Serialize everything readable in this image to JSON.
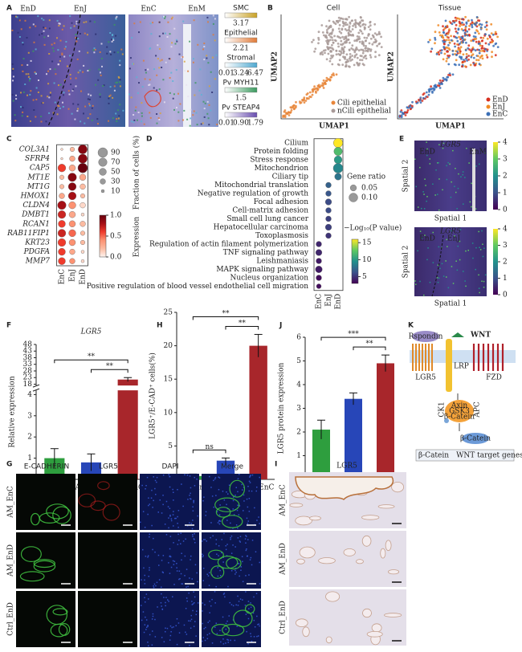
{
  "chart_data": [
    {
      "type": "dot",
      "panel": "C",
      "italic": true,
      "colormap": "Reds",
      "categories": [
        "COL3A1",
        "SFRP4",
        "CAP5",
        "MT1E",
        "MT1G",
        "HMOX1",
        "CLDN4",
        "DMBT1",
        "RCAN1",
        "RAB11FIP1",
        "KRT23",
        "PDGFA",
        "MMP7"
      ],
      "columns": [
        "EnC",
        "EnJ",
        "EnD"
      ],
      "size_values": [
        [
          5,
          20,
          80
        ],
        [
          5,
          30,
          80
        ],
        [
          60,
          40,
          90
        ],
        [
          20,
          70,
          40
        ],
        [
          20,
          60,
          30
        ],
        [
          30,
          60,
          20
        ],
        [
          70,
          50,
          30
        ],
        [
          60,
          40,
          10
        ],
        [
          50,
          40,
          30
        ],
        [
          60,
          50,
          20
        ],
        [
          60,
          40,
          20
        ],
        [
          50,
          30,
          10
        ],
        [
          50,
          30,
          10
        ]
      ],
      "color_values": [
        [
          0.1,
          0.2,
          0.9
        ],
        [
          0.1,
          0.3,
          0.9
        ],
        [
          0.6,
          0.3,
          1.0
        ],
        [
          0.2,
          0.9,
          0.3
        ],
        [
          0.2,
          0.9,
          0.2
        ],
        [
          0.3,
          0.8,
          0.2
        ],
        [
          0.8,
          0.4,
          0.1
        ],
        [
          0.7,
          0.3,
          0.1
        ],
        [
          0.6,
          0.4,
          0.2
        ],
        [
          0.7,
          0.5,
          0.2
        ],
        [
          0.6,
          0.4,
          0.2
        ],
        [
          0.6,
          0.3,
          0.1
        ],
        [
          0.6,
          0.4,
          0.1
        ]
      ],
      "size_legend": {
        "title": "Fraction of cells (%)",
        "ticks": [
          90,
          70,
          50,
          30,
          10
        ]
      },
      "color_legend": {
        "title": "Expression",
        "lim": [
          0,
          1
        ],
        "ticks": [
          {
            "value": 0,
            "label": "0.0"
          },
          0.5,
          {
            "value": 1,
            "label": "1.0"
          }
        ]
      }
    },
    {
      "type": "dot",
      "panel": "D",
      "italic": false,
      "colormap": "viridis",
      "categories": [
        "Cilium",
        "Protein folding",
        "Stress response",
        "Mitochondrion",
        "Ciliary tip",
        "Mitochondrial translation",
        "Negative regulation of growth",
        "Focal adhesion",
        "Cell-matrix adhesion",
        "Small cell lung cancer",
        "Hepatocellular carcinoma",
        "Toxoplasmosis",
        "Regulation of actin filament polymerization",
        "TNF signaling pathway",
        "Leishmaniasis",
        "MAPK signaling pathway",
        "Nucleus organization",
        "Positive regulation of blood vessel endothelial cell migration"
      ],
      "columns": [
        "EnC",
        "EnJ",
        "EnD"
      ],
      "size_values": [
        [
          null,
          null,
          0.11
        ],
        [
          null,
          null,
          0.09
        ],
        [
          null,
          null,
          0.08
        ],
        [
          null,
          null,
          0.12
        ],
        [
          null,
          null,
          0.06
        ],
        [
          null,
          0.04,
          null
        ],
        [
          null,
          0.04,
          null
        ],
        [
          null,
          0.05,
          null
        ],
        [
          null,
          0.04,
          null
        ],
        [
          null,
          0.04,
          null
        ],
        [
          null,
          0.05,
          null
        ],
        [
          null,
          0.04,
          null
        ],
        [
          0.04,
          null,
          null
        ],
        [
          0.05,
          null,
          null
        ],
        [
          0.04,
          null,
          null
        ],
        [
          0.06,
          null,
          null
        ],
        [
          0.04,
          null,
          null
        ],
        [
          0.03,
          null,
          null
        ]
      ],
      "color_values": [
        [
          null,
          null,
          16
        ],
        [
          null,
          null,
          12
        ],
        [
          null,
          null,
          10
        ],
        [
          null,
          null,
          9
        ],
        [
          null,
          null,
          8
        ],
        [
          null,
          7,
          null
        ],
        [
          null,
          6.5,
          null
        ],
        [
          null,
          6,
          null
        ],
        [
          null,
          6,
          null
        ],
        [
          null,
          5.5,
          null
        ],
        [
          null,
          5.5,
          null
        ],
        [
          null,
          5,
          null
        ],
        [
          4.5,
          null,
          null
        ],
        [
          4.5,
          null,
          null
        ],
        [
          4,
          null,
          null
        ],
        [
          4,
          null,
          null
        ],
        [
          3.5,
          null,
          null
        ],
        [
          3.5,
          null,
          null
        ]
      ],
      "size_legend": {
        "title": "Gene ratio",
        "ticks": [
          0.05,
          {
            "value": 0.1,
            "label": "0.10"
          }
        ]
      },
      "color_legend": {
        "title": "−Log₁₀(P value)",
        "lim": [
          3,
          16
        ],
        "ticks": [
          5,
          10,
          15
        ]
      }
    },
    {
      "type": "bar",
      "panel": "F",
      "title": "LGR5",
      "y_label": "Relative expression",
      "categories": [
        "Ctrl_EnD",
        "AM_EnD",
        "AM_EnC"
      ],
      "values": [
        1.0,
        0.8,
        21.5
      ],
      "errors": [
        0.45,
        0.4,
        1.5
      ],
      "colors": [
        "#2e9e3e",
        "#2746b8",
        "#a8262b"
      ],
      "ylim": [
        0,
        48
      ],
      "ybreak": [
        4.2,
        17
      ],
      "yticks": [
        0,
        1,
        2,
        3,
        4,
        18,
        23,
        28,
        33,
        38,
        43,
        48
      ],
      "brackets": [
        {
          "text": "**",
          "between": [
            0,
            2
          ]
        },
        {
          "text": "**",
          "between": [
            1,
            2
          ]
        }
      ]
    },
    {
      "type": "bar",
      "panel": "H",
      "y_label": "LGR5⁺/E-CAD⁺ cells(%)",
      "categories": [
        "Ctrl_EnD",
        "AM_EnD",
        "AM_EnC"
      ],
      "values": [
        0.5,
        2.8,
        20
      ],
      "errors": [
        0.3,
        0.4,
        1.7
      ],
      "colors": [
        "#2e9e3e",
        "#2746b8",
        "#a8262b"
      ],
      "ylim": [
        0,
        25
      ],
      "yticks": [
        0,
        5,
        10,
        15,
        20,
        25
      ],
      "brackets": [
        {
          "text": "ns",
          "between": [
            0,
            1
          ]
        },
        {
          "text": "**",
          "between": [
            0,
            2
          ]
        },
        {
          "text": "**",
          "between": [
            1,
            2
          ]
        }
      ]
    },
    {
      "type": "bar",
      "panel": "J",
      "y_label": "LGR5 protein expression",
      "categories": [
        "Ctrl_EnD",
        "AM_EnD",
        "AM_EnC"
      ],
      "values": [
        2.1,
        3.4,
        4.9
      ],
      "errors": [
        0.4,
        0.25,
        0.35
      ],
      "colors": [
        "#2e9e3e",
        "#2746b8",
        "#a8262b"
      ],
      "ylim": [
        0,
        6
      ],
      "yticks": [
        0,
        1,
        2,
        3,
        4,
        5,
        6
      ],
      "brackets": [
        {
          "text": "***",
          "between": [
            0,
            2
          ]
        },
        {
          "text": "**",
          "between": [
            1,
            2
          ]
        }
      ]
    }
  ],
  "figure": {
    "a": {
      "panel": "A",
      "regions": [
        "EnD",
        "EnJ",
        "EnC",
        "EnM"
      ],
      "colorbars": [
        {
          "name": "SMC",
          "color": "#c9a227",
          "ticks": [
            3.17
          ]
        },
        {
          "name": "Epithelial",
          "color": "#e07b39",
          "ticks": [
            2.21
          ]
        },
        {
          "name": "Stromal",
          "color": "#4fa8d0",
          "ticks": [
            0.01,
            3.24,
            6.47
          ]
        },
        {
          "name": "Pv MYH11",
          "color": "#3c9a5f",
          "ticks": [
            1.5
          ]
        },
        {
          "name": "Pv STEAP4",
          "color": "#6a4fb0",
          "ticks": [
            0.01,
            {
              "value": 0.9,
              "label": "0.90"
            },
            1.79
          ]
        }
      ]
    },
    "b": {
      "panel": "B",
      "titles": [
        "Cell",
        "Tissue"
      ],
      "x_label": "UMAP1",
      "y_label": "UMAP2",
      "cell_legend": [
        {
          "name": "Cili epithelial",
          "color": "#e8863a"
        },
        {
          "name": "nCili epithelial",
          "color": "#a89a98"
        }
      ],
      "tissue_legend": [
        {
          "name": "EnD",
          "color": "#d7301f"
        },
        {
          "name": "EnJ",
          "color": "#f08a24"
        },
        {
          "name": "EnC",
          "color": "#3b6fb6"
        }
      ]
    },
    "e": {
      "panel": "E",
      "gene": "LGR5",
      "x_label": "Spatial 1",
      "y_label": "Spatial 2",
      "regions": [
        [
          "EnD",
          "EnM"
        ],
        [
          "EnD",
          "EnJ"
        ]
      ],
      "colorbar_ticks": [
        0,
        1,
        2,
        3,
        4
      ]
    },
    "g": {
      "panel": "G",
      "channels": [
        {
          "name": "E-CADHERIN",
          "color": "#2ca02c"
        },
        {
          "name": "LGR5",
          "color": "#d62728"
        },
        {
          "name": "DAPI",
          "color": "#2a4fd0"
        },
        {
          "name": "Merge",
          "color": "#3a9a2a"
        }
      ],
      "samples": [
        "AM_EnC",
        "AM_EnD",
        "Ctrl_EnD"
      ]
    },
    "i": {
      "panel": "I",
      "gene": "LGR5",
      "samples": [
        "AM_EnC",
        "AM_EnD",
        "Ctrl_EnD"
      ]
    },
    "k": {
      "panel": "K",
      "labels": {
        "rspondin": "Rspondin",
        "wnt": "WNT",
        "lgr5": "LGR5",
        "fzd": "FZD",
        "lrp": "LRP",
        "axin": "Axin",
        "gsk3": "GSK3",
        "apc": "APC",
        "ck1": "CK1",
        "catenin": "β-Catein",
        "target": "WNT target genes"
      }
    }
  }
}
